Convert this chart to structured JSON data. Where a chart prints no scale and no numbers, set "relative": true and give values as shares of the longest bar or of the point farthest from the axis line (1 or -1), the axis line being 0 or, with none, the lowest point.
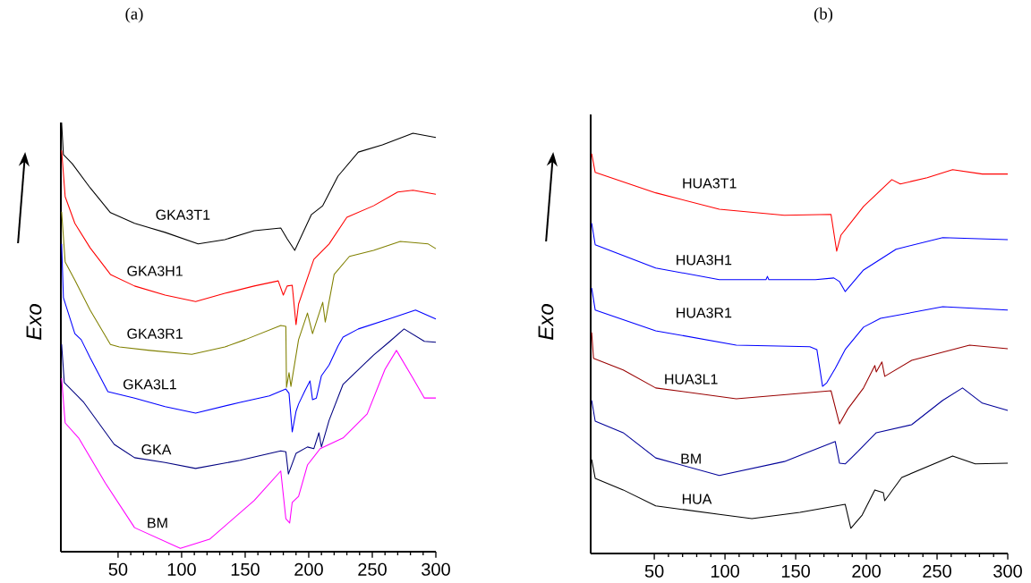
{
  "chart_data": [
    {
      "type": "line",
      "title": "(a)",
      "ylabel": "Exo",
      "relative": true,
      "xlim": [
        5,
        300
      ],
      "xticks": [
        50,
        100,
        150,
        200,
        250,
        300
      ],
      "series": [
        {
          "name": "GKA3T1",
          "color": "#000000",
          "x": [
            5.6,
            7,
            14,
            28,
            44,
            63,
            87,
            113,
            134,
            157,
            178,
            183,
            189,
            202,
            211,
            223,
            239,
            258,
            282,
            300
          ],
          "values": [
            1.0,
            0.925,
            0.904,
            0.848,
            0.79,
            0.765,
            0.744,
            0.717,
            0.727,
            0.748,
            0.754,
            0.729,
            0.702,
            0.785,
            0.806,
            0.875,
            0.931,
            0.948,
            0.975,
            0.965
          ]
        },
        {
          "name": "GKA3H1",
          "color": "#ff0000",
          "x": [
            5.6,
            8.4,
            16,
            28,
            44,
            63,
            87,
            111,
            134,
            157,
            176,
            180,
            183,
            187,
            190,
            192,
            204,
            216,
            230,
            251,
            270,
            282,
            300
          ],
          "values": [
            0.935,
            0.827,
            0.765,
            0.708,
            0.646,
            0.619,
            0.598,
            0.583,
            0.602,
            0.619,
            0.631,
            0.598,
            0.619,
            0.621,
            0.529,
            0.577,
            0.681,
            0.717,
            0.779,
            0.806,
            0.838,
            0.842,
            0.833
          ]
        },
        {
          "name": "GKA3R1",
          "color": "#808000",
          "x": [
            5.6,
            8.4,
            16,
            28,
            44,
            51,
            75,
            108,
            134,
            150,
            178,
            182,
            182.5,
            184.5,
            186,
            192,
            199,
            203,
            211,
            213,
            220,
            232,
            251,
            272,
            294,
            300
          ],
          "values": [
            0.792,
            0.675,
            0.633,
            0.563,
            0.483,
            0.477,
            0.469,
            0.46,
            0.477,
            0.494,
            0.527,
            0.525,
            0.383,
            0.417,
            0.385,
            0.494,
            0.556,
            0.508,
            0.581,
            0.535,
            0.646,
            0.688,
            0.702,
            0.723,
            0.717,
            0.706
          ]
        },
        {
          "name": "GKA3L1",
          "color": "#0000ff",
          "x": [
            5.6,
            7,
            16,
            21,
            28,
            42,
            63,
            87,
            111,
            146,
            169,
            182,
            184.5,
            187,
            190,
            192,
            197,
            201,
            203,
            206,
            210,
            216,
            223,
            227,
            239,
            263,
            284,
            300
          ],
          "values": [
            0.717,
            0.592,
            0.508,
            0.494,
            0.452,
            0.373,
            0.358,
            0.338,
            0.323,
            0.348,
            0.363,
            0.379,
            0.369,
            0.279,
            0.327,
            0.344,
            0.375,
            0.398,
            0.354,
            0.358,
            0.41,
            0.435,
            0.479,
            0.5,
            0.519,
            0.542,
            0.563,
            0.542
          ]
        },
        {
          "name": "GKA",
          "color": "#000080",
          "x": [
            5.6,
            7.7,
            23,
            47,
            63,
            87,
            111,
            146,
            178,
            182,
            184,
            190,
            199,
            204,
            208,
            210,
            216,
            227,
            251,
            263,
            275,
            291,
            300
          ],
          "values": [
            0.483,
            0.394,
            0.348,
            0.25,
            0.219,
            0.208,
            0.194,
            0.213,
            0.235,
            0.233,
            0.181,
            0.229,
            0.244,
            0.24,
            0.277,
            0.244,
            0.306,
            0.39,
            0.458,
            0.488,
            0.519,
            0.49,
            0.488
          ]
        },
        {
          "name": "BM",
          "color": "#ff00ff",
          "x": [
            5.6,
            8.4,
            19,
            40,
            63,
            99,
            122,
            157,
            178,
            182,
            185,
            187,
            192,
            199,
            209,
            227,
            246,
            260,
            269,
            282,
            291,
            300
          ],
          "values": [
            0.404,
            0.3,
            0.265,
            0.16,
            0.056,
            0.008,
            0.029,
            0.119,
            0.188,
            0.077,
            0.067,
            0.115,
            0.129,
            0.202,
            0.24,
            0.265,
            0.321,
            0.425,
            0.469,
            0.404,
            0.358,
            0.358
          ]
        }
      ]
    },
    {
      "type": "line",
      "title": "(b)",
      "ylabel": "Exo",
      "relative": true,
      "xlim": [
        5,
        300
      ],
      "xticks": [
        50,
        100,
        150,
        200,
        250,
        300
      ],
      "series": [
        {
          "name": "HUA3T1",
          "color": "#ff0000",
          "x": [
            5.7,
            8.2,
            51,
            96,
            142,
            175,
            179,
            182,
            198,
            218,
            224,
            243,
            261,
            282,
            300
          ],
          "values": [
            1.0,
            0.953,
            0.902,
            0.861,
            0.846,
            0.848,
            0.756,
            0.796,
            0.868,
            0.935,
            0.924,
            0.94,
            0.96,
            0.949,
            0.949
          ]
        },
        {
          "name": "HUA3H1",
          "color": "#0000ff",
          "x": [
            5.7,
            8.2,
            51,
            96,
            129,
            130,
            131,
            164,
            177,
            181,
            185,
            198,
            221,
            254,
            300
          ],
          "values": [
            0.826,
            0.772,
            0.714,
            0.685,
            0.685,
            0.693,
            0.685,
            0.685,
            0.689,
            0.68,
            0.655,
            0.709,
            0.761,
            0.79,
            0.785
          ]
        },
        {
          "name": "HUA3R1",
          "color": "#0000ff",
          "x": [
            5.7,
            8.2,
            51,
            108,
            160,
            165,
            169,
            172,
            178,
            185,
            198,
            210,
            254,
            300
          ],
          "values": [
            0.664,
            0.609,
            0.557,
            0.521,
            0.517,
            0.51,
            0.418,
            0.427,
            0.463,
            0.51,
            0.566,
            0.588,
            0.617,
            0.609
          ]
        },
        {
          "name": "HUA3L1",
          "color": "#990000",
          "x": [
            5.7,
            7,
            28,
            51,
            108,
            175,
            181,
            187,
            198,
            206,
            207,
            211,
            213,
            232,
            273,
            300
          ],
          "values": [
            0.553,
            0.488,
            0.459,
            0.414,
            0.387,
            0.407,
            0.324,
            0.362,
            0.414,
            0.47,
            0.454,
            0.479,
            0.443,
            0.483,
            0.521,
            0.512
          ]
        },
        {
          "name": "BM",
          "color": "#000099",
          "x": [
            5.7,
            8.2,
            28,
            51,
            96,
            142,
            178,
            181,
            185,
            194,
            207,
            232,
            254,
            268,
            282,
            300
          ],
          "values": [
            0.383,
            0.331,
            0.302,
            0.239,
            0.195,
            0.23,
            0.28,
            0.226,
            0.224,
            0.255,
            0.302,
            0.322,
            0.383,
            0.414,
            0.376,
            0.358
          ]
        },
        {
          "name": "HUA",
          "color": "#000000",
          "x": [
            5.7,
            8.2,
            28,
            51,
            96,
            119,
            153,
            185,
            189,
            197,
            206,
            212,
            213,
            225,
            261,
            277,
            300
          ],
          "values": [
            0.235,
            0.188,
            0.159,
            0.119,
            0.098,
            0.087,
            0.103,
            0.123,
            0.063,
            0.096,
            0.159,
            0.152,
            0.132,
            0.19,
            0.244,
            0.224,
            0.226
          ]
        }
      ]
    }
  ]
}
